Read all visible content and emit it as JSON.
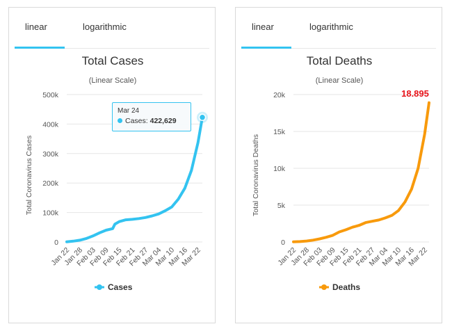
{
  "tabs": {
    "linear": "linear",
    "logarithmic": "logarithmic"
  },
  "colors": {
    "cases": "#33c3f0",
    "deaths": "#f89a0c",
    "annotation": "#e8141b"
  },
  "chart_data": [
    {
      "type": "line",
      "title": "Total Cases",
      "subtitle": "(Linear Scale)",
      "ylabel": "Total Coronavirus Cases",
      "ylim": [
        0,
        500000
      ],
      "yticks": [
        0,
        100000,
        200000,
        300000,
        400000,
        500000
      ],
      "ytick_labels": [
        "0",
        "100k",
        "200k",
        "300k",
        "400k",
        "500k"
      ],
      "xtick_labels": [
        "Jan 22",
        "Jan 28",
        "Feb 03",
        "Feb 09",
        "Feb 15",
        "Feb 21",
        "Feb 27",
        "Mar 04",
        "Mar 10",
        "Mar 16",
        "Mar 22"
      ],
      "x": [
        "Jan 22",
        "Jan 25",
        "Jan 28",
        "Jan 31",
        "Feb 03",
        "Feb 06",
        "Feb 09",
        "Feb 12",
        "Feb 13",
        "Feb 15",
        "Feb 18",
        "Feb 21",
        "Feb 24",
        "Feb 27",
        "Mar 01",
        "Mar 04",
        "Mar 07",
        "Mar 10",
        "Mar 13",
        "Mar 16",
        "Mar 19",
        "Mar 22",
        "Mar 24"
      ],
      "series": [
        {
          "name": "Cases",
          "values": [
            580,
            2900,
            6100,
            11950,
            20600,
            31200,
            40200,
            45200,
            60300,
            69000,
            75200,
            76800,
            79400,
            83100,
            88400,
            95100,
            105800,
            118900,
            145300,
            182400,
            243000,
            337000,
            422629
          ]
        }
      ],
      "legend": "bottom-center",
      "tooltip": {
        "date": "Mar 24",
        "series": "Cases",
        "value": "422,629"
      }
    },
    {
      "type": "line",
      "title": "Total Deaths",
      "subtitle": "(Linear Scale)",
      "ylabel": "Total Coronavirus Deaths",
      "ylim": [
        0,
        20000
      ],
      "yticks": [
        0,
        5000,
        10000,
        15000,
        20000
      ],
      "ytick_labels": [
        "0",
        "5k",
        "10k",
        "15k",
        "20k"
      ],
      "xtick_labels": [
        "Jan 22",
        "Jan 28",
        "Feb 03",
        "Feb 09",
        "Feb 15",
        "Feb 21",
        "Feb 27",
        "Mar 04",
        "Mar 10",
        "Mar 16",
        "Mar 22"
      ],
      "x": [
        "Jan 22",
        "Jan 25",
        "Jan 28",
        "Jan 31",
        "Feb 03",
        "Feb 06",
        "Feb 09",
        "Feb 12",
        "Feb 15",
        "Feb 18",
        "Feb 21",
        "Feb 24",
        "Feb 27",
        "Mar 01",
        "Mar 04",
        "Mar 07",
        "Mar 10",
        "Mar 13",
        "Mar 16",
        "Mar 19",
        "Mar 22",
        "Mar 24"
      ],
      "series": [
        {
          "name": "Deaths",
          "values": [
            17,
            56,
            132,
            259,
            427,
            638,
            910,
            1370,
            1665,
            2005,
            2250,
            2630,
            2810,
            2980,
            3260,
            3600,
            4260,
            5430,
            7160,
            10000,
            14650,
            18895
          ]
        }
      ],
      "legend": "bottom-center",
      "annotation": "18.895"
    }
  ]
}
